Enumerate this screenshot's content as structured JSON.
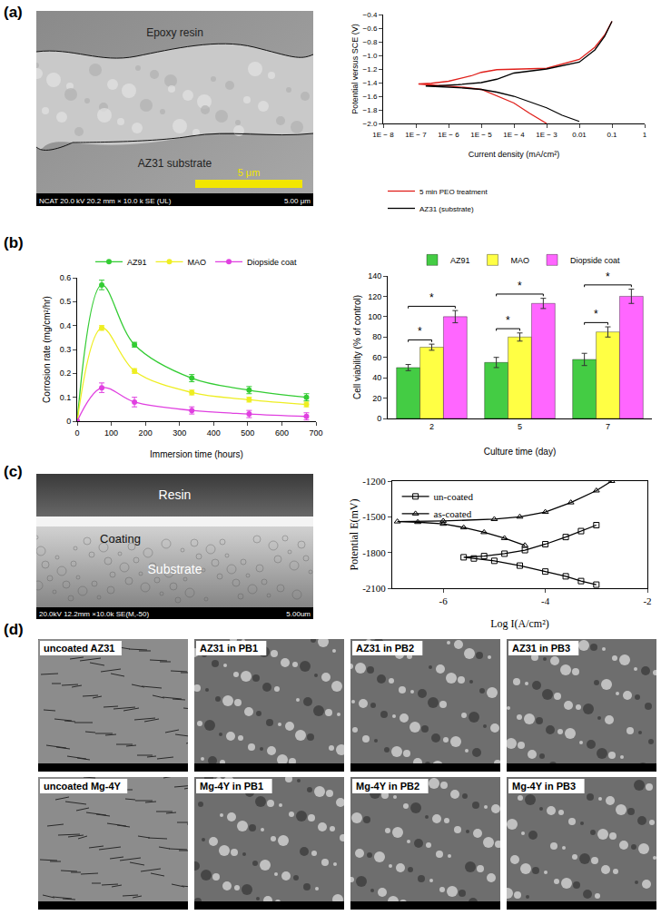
{
  "panel_labels": [
    "(a)",
    "(b)",
    "(c)",
    "(d)"
  ],
  "micrographs": {
    "a": {
      "labels": [
        "Epoxy resin",
        "AZ31 substrate"
      ],
      "scale_bar": "5 μm",
      "info_bar": [
        "NCAT 20.0 kV 20.2 mm × 10.0 k SE (UL)",
        "5.00 μm"
      ]
    },
    "c": {
      "labels": [
        "Resin",
        "Coating",
        "Substrate"
      ],
      "info_bar": [
        "20.0kV 12.2mm ×10.0k SE(M,-50)",
        "5.00um"
      ]
    },
    "d": {
      "labels": [
        "uncoated AZ31",
        "AZ31 in PB1",
        "AZ31 in PB2",
        "AZ31 in PB3",
        "uncoated Mg-4Y",
        "Mg-4Y in PB1",
        "Mg-4Y in PB2",
        "Mg-4Y in PB3"
      ]
    }
  },
  "chart_data": [
    {
      "type": "line",
      "x_label": "Current density (mA/cm²)",
      "y_label": "Potential versus SCE (V)",
      "log": "x",
      "grid": false,
      "legend": "bottom",
      "xlim": [
        1e-08,
        1
      ],
      "xticks": [
        {
          "value": 1e-08,
          "label": "1E − 8"
        },
        {
          "value": 1e-07,
          "label": "1E − 7"
        },
        {
          "value": 1e-06,
          "label": "1E − 6"
        },
        {
          "value": 1e-05,
          "label": "1E − 5"
        },
        {
          "value": 0.0001,
          "label": "1E − 4"
        },
        {
          "value": 0.001,
          "label": "1E − 3"
        },
        0.01,
        0.1,
        1
      ],
      "ylim": [
        -2.0,
        -0.4
      ],
      "yticks": [
        {
          "value": -2.0,
          "label": "−2.0"
        },
        {
          "value": -1.8,
          "label": "−1.8"
        },
        {
          "value": -1.6,
          "label": "−1.6"
        },
        {
          "value": -1.4,
          "label": "−1.4"
        },
        {
          "value": -1.2,
          "label": "−1.2"
        },
        {
          "value": -1.0,
          "label": "−1.0"
        },
        {
          "value": -0.8,
          "label": "−0.8"
        },
        {
          "value": -0.6,
          "label": "−0.6"
        },
        {
          "value": -0.4,
          "label": "−0.4"
        }
      ],
      "series": [
        {
          "name": "5 min PEO treatment",
          "color": "#e0201b",
          "x": [
            0.001,
            0.0003,
            0.0001,
            3e-05,
            1e-05,
            3e-06,
            1e-06,
            3e-07,
            1.2e-07,
            3e-07,
            1e-06,
            5e-06,
            1e-05,
            3e-05,
            0.0001,
            0.001,
            0.01,
            0.03,
            0.06,
            0.1
          ],
          "values": [
            -2.0,
            -1.85,
            -1.7,
            -1.6,
            -1.5,
            -1.47,
            -1.45,
            -1.43,
            -1.42,
            -1.41,
            -1.38,
            -1.3,
            -1.25,
            -1.21,
            -1.2,
            -1.19,
            -1.06,
            -0.88,
            -0.7,
            -0.5
          ]
        },
        {
          "name": "AZ31 (substrate)",
          "color": "#000000",
          "x": [
            0.01,
            0.003,
            0.001,
            0.0003,
            0.0001,
            3e-05,
            1e-05,
            3e-06,
            1e-06,
            4e-07,
            2e-07,
            5e-07,
            2e-06,
            1e-05,
            3e-05,
            0.0001,
            0.001,
            0.01,
            0.03,
            0.06,
            0.1
          ],
          "values": [
            -1.97,
            -1.88,
            -1.77,
            -1.68,
            -1.6,
            -1.54,
            -1.5,
            -1.48,
            -1.465,
            -1.455,
            -1.45,
            -1.445,
            -1.43,
            -1.4,
            -1.35,
            -1.26,
            -1.2,
            -1.1,
            -0.92,
            -0.72,
            -0.5
          ]
        }
      ]
    },
    {
      "type": "line",
      "x_label": "Immersion time (hours)",
      "y_label": "Corrosion rate (mg/cm²/hr)",
      "grid": false,
      "legend": "top",
      "marker": "circle",
      "line_style": "smooth",
      "x": [
        0,
        72,
        168,
        336,
        504,
        672
      ],
      "xlim": [
        0,
        700
      ],
      "xticks": [
        0,
        100,
        200,
        300,
        400,
        500,
        600,
        700
      ],
      "ylim": [
        0,
        0.6
      ],
      "yticks": [
        0,
        0.1,
        0.2,
        0.3,
        0.4,
        0.5,
        0.6
      ],
      "series": [
        {
          "name": "AZ91",
          "color": "#33cc33",
          "values": [
            0,
            0.57,
            0.32,
            0.18,
            0.13,
            0.1
          ],
          "errors": [
            0,
            0.02,
            0.01,
            0.015,
            0.015,
            0.015
          ]
        },
        {
          "name": "MAO",
          "color": "#eeee22",
          "values": [
            0,
            0.39,
            0.21,
            0.12,
            0.09,
            0.07
          ],
          "errors": [
            0,
            0.01,
            0.01,
            0.01,
            0.01,
            0.01
          ]
        },
        {
          "name": "Diopside coat",
          "color": "#e040e0",
          "values": [
            0,
            0.14,
            0.08,
            0.045,
            0.03,
            0.02
          ],
          "errors": [
            0,
            0.02,
            0.02,
            0.015,
            0.015,
            0.015
          ]
        }
      ]
    },
    {
      "type": "bar",
      "x_label": "Culture time (day)",
      "y_label": "Cell viability (% of control)",
      "grid": false,
      "legend": "top",
      "categories": [
        "2",
        "5",
        "7"
      ],
      "ylim": [
        0,
        140
      ],
      "yticks": [
        0,
        20,
        40,
        60,
        80,
        100,
        120,
        140
      ],
      "series": [
        {
          "name": "AZ91",
          "color": "#44cc44",
          "values": [
            50,
            55,
            58
          ],
          "errors": [
            3,
            5,
            6
          ]
        },
        {
          "name": "MAO",
          "color": "#ffff44",
          "values": [
            70,
            80,
            85
          ],
          "errors": [
            3,
            4,
            5
          ]
        },
        {
          "name": "Diopside coat",
          "color": "#ff66ff",
          "values": [
            100,
            113,
            120
          ],
          "errors": [
            6,
            5,
            7
          ]
        }
      ],
      "significance": [
        {
          "category": "2",
          "between": [
            "AZ91",
            "MAO"
          ],
          "label": "*"
        },
        {
          "category": "2",
          "between": [
            "AZ91",
            "Diopside coat"
          ],
          "label": "*"
        },
        {
          "category": "5",
          "between": [
            "AZ91",
            "MAO"
          ],
          "label": "*"
        },
        {
          "category": "5",
          "between": [
            "AZ91",
            "Diopside coat"
          ],
          "label": "*"
        },
        {
          "category": "7",
          "between": [
            "AZ91",
            "MAO"
          ],
          "label": "*"
        },
        {
          "category": "7",
          "between": [
            "AZ91",
            "Diopside coat"
          ],
          "label": "*"
        }
      ]
    },
    {
      "type": "line",
      "x_label": "Log I(A/cm²)",
      "y_label": "Potential E(mV)",
      "grid": false,
      "legend": "top left",
      "xlim": [
        -7,
        -2
      ],
      "xticks": [
        -6,
        -4,
        -2
      ],
      "ylim": [
        -2100,
        -1200
      ],
      "yticks": [
        -2100,
        -1800,
        -1500,
        -1200
      ],
      "series": [
        {
          "name": "un-coated",
          "color": "#000000",
          "marker": "square-open",
          "x": [
            -3.0,
            -3.3,
            -3.6,
            -4.0,
            -4.5,
            -5.0,
            -5.4,
            -5.6,
            -5.2,
            -4.8,
            -4.4,
            -4.0,
            -3.6,
            -3.3,
            -3.0
          ],
          "values": [
            -2070,
            -2040,
            -2000,
            -1960,
            -1910,
            -1870,
            -1850,
            -1840,
            -1830,
            -1810,
            -1780,
            -1730,
            -1670,
            -1620,
            -1570
          ]
        },
        {
          "name": "as-coated",
          "color": "#000000",
          "marker": "triangle-up-open",
          "x": [
            -4.4,
            -4.8,
            -5.2,
            -5.6,
            -6.0,
            -6.5,
            -6.9,
            -6.0,
            -5.0,
            -4.5,
            -4.0,
            -3.5,
            -3.0,
            -2.7
          ],
          "values": [
            -1740,
            -1680,
            -1630,
            -1590,
            -1560,
            -1545,
            -1540,
            -1535,
            -1520,
            -1500,
            -1460,
            -1380,
            -1280,
            -1200
          ]
        }
      ]
    }
  ]
}
